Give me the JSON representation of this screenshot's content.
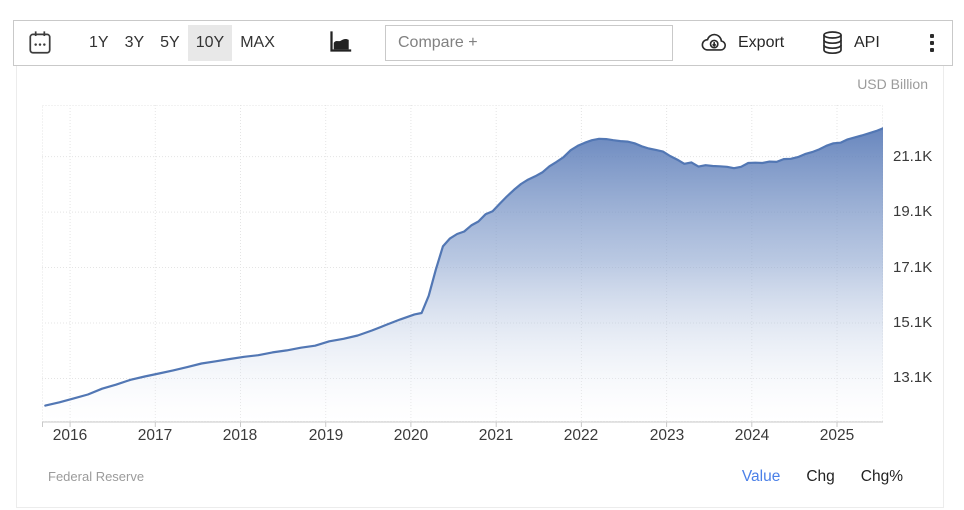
{
  "toolbar": {
    "calendar_icon": "calendar-icon",
    "ranges": [
      {
        "label": "1Y",
        "active": false
      },
      {
        "label": "3Y",
        "active": false
      },
      {
        "label": "5Y",
        "active": false
      },
      {
        "label": "10Y",
        "active": true
      },
      {
        "label": "MAX",
        "active": false
      }
    ],
    "chart_type_icon": "area-chart-icon",
    "compare_placeholder": "Compare +",
    "export_label": "Export",
    "api_label": "API",
    "menu_icon": "kebab-menu-icon"
  },
  "chart": {
    "unit_label": "USD Billion",
    "y_ticks": [
      "21.1K",
      "19.1K",
      "17.1K",
      "15.1K",
      "13.1K"
    ],
    "x_ticks": [
      "2016",
      "2017",
      "2018",
      "2019",
      "2020",
      "2021",
      "2022",
      "2023",
      "2024",
      "2025"
    ]
  },
  "footer": {
    "source": "Federal Reserve",
    "links": [
      {
        "label": "Value",
        "active": true
      },
      {
        "label": "Chg",
        "active": false
      },
      {
        "label": "Chg%",
        "active": false
      }
    ]
  },
  "colors": {
    "line": "#5277b4",
    "fill_top": "#5b7cb8",
    "fill_mid": "#8ea6d0",
    "fill_bottom": "#ffffff",
    "active_range_bg": "#e8e8e8",
    "value_link": "#4b80e8",
    "grid": "#e4e4e4",
    "muted_text": "#9b9b9b"
  },
  "chart_data": {
    "type": "area",
    "title": "",
    "ylabel": "USD Billion",
    "xlabel": "",
    "source": "Federal Reserve",
    "grid": true,
    "legend_position": "none",
    "ylim": [
      11530,
      22960
    ],
    "xlim_years": [
      2015.67,
      2025.54
    ],
    "y_gridlines": [
      21100,
      19100,
      17100,
      15100,
      13100
    ],
    "x_gridlines_years": [
      2016,
      2017,
      2018,
      2019,
      2020,
      2021,
      2022,
      2023,
      2024,
      2025
    ],
    "x": [
      "2015-09",
      "2015-11",
      "2016-01",
      "2016-03",
      "2016-05",
      "2016-07",
      "2016-09",
      "2016-11",
      "2017-01",
      "2017-03",
      "2017-05",
      "2017-07",
      "2017-09",
      "2017-11",
      "2018-01",
      "2018-03",
      "2018-05",
      "2018-07",
      "2018-09",
      "2018-11",
      "2019-01",
      "2019-03",
      "2019-05",
      "2019-07",
      "2019-09",
      "2019-11",
      "2020-01",
      "2020-02",
      "2020-03",
      "2020-04",
      "2020-05",
      "2020-06",
      "2020-07",
      "2020-08",
      "2020-09",
      "2020-10",
      "2020-11",
      "2020-12",
      "2021-01",
      "2021-02",
      "2021-03",
      "2021-04",
      "2021-05",
      "2021-06",
      "2021-07",
      "2021-08",
      "2021-09",
      "2021-10",
      "2021-11",
      "2021-12",
      "2022-01",
      "2022-02",
      "2022-03",
      "2022-04",
      "2022-05",
      "2022-06",
      "2022-07",
      "2022-08",
      "2022-09",
      "2022-10",
      "2022-11",
      "2022-12",
      "2023-01",
      "2023-02",
      "2023-03",
      "2023-04",
      "2023-05",
      "2023-06",
      "2023-07",
      "2023-08",
      "2023-09",
      "2023-10",
      "2023-11",
      "2023-12",
      "2024-01",
      "2024-02",
      "2024-03",
      "2024-04",
      "2024-05",
      "2024-06",
      "2024-07",
      "2024-08",
      "2024-09",
      "2024-10",
      "2024-11",
      "2024-12",
      "2025-01",
      "2025-02",
      "2025-03",
      "2025-04",
      "2025-05",
      "2025-06",
      "2025-07"
    ],
    "values": [
      12120,
      12240,
      12380,
      12520,
      12730,
      12880,
      13050,
      13170,
      13280,
      13390,
      13510,
      13640,
      13720,
      13800,
      13880,
      13940,
      14040,
      14110,
      14210,
      14280,
      14440,
      14530,
      14650,
      14830,
      15030,
      15230,
      15410,
      15460,
      16080,
      17020,
      17860,
      18150,
      18310,
      18400,
      18620,
      18760,
      19020,
      19130,
      19400,
      19660,
      19900,
      20110,
      20270,
      20390,
      20530,
      20750,
      20910,
      21080,
      21330,
      21490,
      21600,
      21690,
      21740,
      21730,
      21690,
      21660,
      21640,
      21580,
      21470,
      21390,
      21340,
      21280,
      21120,
      20990,
      20840,
      20890,
      20740,
      20790,
      20760,
      20750,
      20730,
      20680,
      20730,
      20870,
      20880,
      20870,
      20920,
      20910,
      21010,
      21020,
      21080,
      21190,
      21260,
      21360,
      21490,
      21580,
      21600,
      21720,
      21790,
      21860,
      21940,
      22020,
      22120
    ]
  }
}
